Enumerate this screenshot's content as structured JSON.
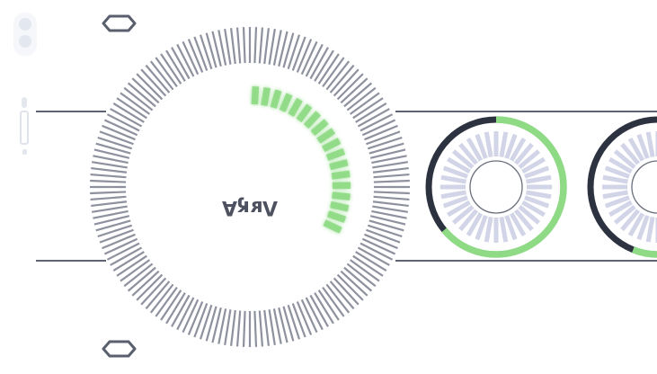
{
  "theme": {
    "track_line": "#5f6175",
    "tick_gray": "#8e919e",
    "progress_green": "#8fdb85",
    "progress_green_glow": "#c9f1c3",
    "ring_dark": "#2d3240",
    "ring_light_spokes": "#d2d4e8",
    "caret_stroke": "#5a5f6e",
    "indicator_gray": "#dfe2ea"
  },
  "icons": {
    "up": "chevron-up-outline-icon",
    "down": "chevron-down-outline-icon",
    "menu": "two-dot-menu-icon",
    "center": "mirrored-glyph-label"
  },
  "main_dial": {
    "label": "ɅʁӄА",
    "progress_fraction": 0.33
  },
  "carousel": {
    "items": [
      {
        "progress_fraction": 0.64
      },
      {
        "progress_fraction": 0.56
      }
    ]
  }
}
